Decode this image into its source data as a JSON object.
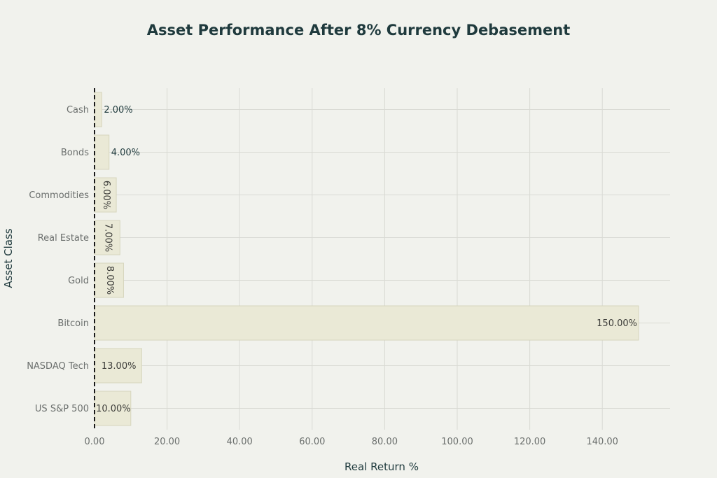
{
  "chart_data": {
    "type": "bar",
    "orientation": "horizontal",
    "title": "Asset Performance After 8% Currency Debasement",
    "xlabel": "Real Return %",
    "ylabel": "Asset Class",
    "categories": [
      "Cash",
      "Bonds",
      "Commodities",
      "Real Estate",
      "Gold",
      "Bitcoin",
      "NASDAQ Tech",
      "US S&P 500"
    ],
    "values": [
      2,
      4,
      6,
      7,
      8,
      150,
      13,
      10
    ],
    "value_labels": [
      "2.00%",
      "4.00%",
      "6.00%",
      "7.00%",
      "8.00%",
      "150.00%",
      "13.00%",
      "10.00%"
    ],
    "xlim": [
      0,
      158
    ],
    "xticks": [
      0,
      20,
      40,
      60,
      80,
      100,
      120,
      140
    ],
    "xtick_labels": [
      "0.00",
      "20.00",
      "40.00",
      "60.00",
      "80.00",
      "100.00",
      "120.00",
      "140.00"
    ],
    "grid": true,
    "zero_line": "dashed",
    "bar_color": "#eae9d6",
    "bar_edge_color": "#d6d5bd"
  }
}
